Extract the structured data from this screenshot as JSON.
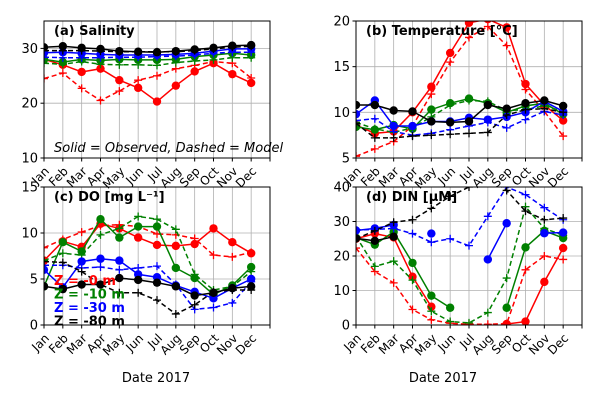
{
  "figure": {
    "xlabel": "Date 2017",
    "months": [
      "Jan",
      "Feb",
      "Mar",
      "Apr",
      "May",
      "Jun",
      "Jul",
      "Aug",
      "Sep",
      "Oct",
      "Nov",
      "Dec"
    ],
    "annotation": "Solid = Observed, Dashed = Model",
    "legend_entries": [
      {
        "label": "Z =    -0 m",
        "color": "#ff0000"
      },
      {
        "label": "Z =   -10 m",
        "color": "#008000"
      },
      {
        "label": "Z =   -30 m",
        "color": "#0000ff"
      },
      {
        "label": "Z =   -80 m",
        "color": "#000000"
      }
    ]
  },
  "chart_data": [
    {
      "type": "line",
      "title": "(a) Salinity",
      "ylim": [
        10,
        35
      ],
      "yticks": [
        10,
        20,
        30
      ],
      "xlim": [
        0,
        12
      ],
      "grid": true,
      "series": [
        {
          "color": "#ff0000",
          "style": "observed",
          "x": [
            0,
            1,
            2,
            3,
            4,
            5,
            6,
            7,
            8,
            9,
            10,
            11
          ],
          "y": [
            28,
            27,
            25.7,
            26.3,
            24.2,
            22.8,
            20.3,
            23.2,
            25.8,
            27.3,
            25.3,
            23.7
          ]
        },
        {
          "color": "#ff0000",
          "style": "model",
          "x": [
            0,
            1,
            2,
            3,
            4,
            5,
            6,
            7,
            8,
            9,
            10,
            11
          ],
          "y": [
            24.5,
            25.5,
            22.7,
            20.5,
            22.2,
            24.2,
            25,
            26.3,
            26.9,
            27.6,
            27.3,
            24.6
          ]
        },
        {
          "color": "#008000",
          "style": "observed",
          "x": [
            0,
            1,
            2,
            3,
            4,
            5,
            6,
            7,
            8,
            9,
            10,
            11
          ],
          "y": [
            28,
            27.5,
            28,
            27.8,
            28,
            27.9,
            27.9,
            28,
            28.5,
            28.8,
            29.1,
            28.8
          ]
        },
        {
          "color": "#008000",
          "style": "model",
          "x": [
            0,
            1,
            2,
            3,
            4,
            5,
            6,
            7,
            8,
            9,
            10,
            11
          ],
          "y": [
            27.3,
            27.1,
            27.6,
            27.1,
            27,
            27,
            26.9,
            27.4,
            27.7,
            27.9,
            28.3,
            28.3
          ]
        },
        {
          "color": "#0000ff",
          "style": "observed",
          "x": [
            0,
            1,
            2,
            3,
            4,
            5,
            6,
            7,
            8,
            9,
            10,
            11
          ],
          "y": [
            29.2,
            29.3,
            29.1,
            28.9,
            28.8,
            28.8,
            28.8,
            28.9,
            29.1,
            29.5,
            29.9,
            29.9
          ]
        },
        {
          "color": "#0000ff",
          "style": "model",
          "x": [
            0,
            1,
            2,
            3,
            4,
            5,
            6,
            7,
            8,
            9,
            10,
            11
          ],
          "y": [
            28.4,
            28.3,
            28.3,
            28.3,
            28.4,
            28.4,
            28.5,
            28.6,
            28.8,
            29.1,
            29.3,
            29.3
          ]
        },
        {
          "color": "#000000",
          "style": "observed",
          "x": [
            0,
            1,
            2,
            3,
            4,
            5,
            6,
            7,
            8,
            9,
            10,
            11
          ],
          "y": [
            30.2,
            30.4,
            30.1,
            29.9,
            29.5,
            29.4,
            29.3,
            29.5,
            29.8,
            30.1,
            30.5,
            30.6
          ]
        },
        {
          "color": "#000000",
          "style": "model",
          "x": [
            0,
            1,
            2,
            3,
            4,
            5,
            6,
            7,
            8,
            9,
            10,
            11
          ],
          "y": [
            29.6,
            29.6,
            29.6,
            29.5,
            29.4,
            29.4,
            29.4,
            29.4,
            29.6,
            29.9,
            30.2,
            30.4
          ]
        }
      ]
    },
    {
      "type": "line",
      "title": "(b) Temperature [°C]",
      "ylim": [
        5,
        20
      ],
      "yticks": [
        5,
        10,
        15,
        20
      ],
      "xlim": [
        0,
        12
      ],
      "grid": true,
      "series": [
        {
          "color": "#ff0000",
          "style": "observed",
          "x": [
            0,
            1,
            2,
            3,
            4,
            5,
            6,
            7,
            8,
            9,
            10,
            11
          ],
          "y": [
            8.6,
            7.7,
            7.9,
            10,
            12.8,
            16.5,
            19.8,
            20.2,
            19.3,
            13.1,
            10.8,
            9.1
          ]
        },
        {
          "color": "#ff0000",
          "style": "model",
          "x": [
            0,
            1,
            2,
            3,
            4,
            5,
            6,
            7,
            8,
            9,
            10,
            11
          ],
          "y": [
            5.2,
            6,
            6.8,
            8.5,
            12,
            15.5,
            18.2,
            19.4,
            17.3,
            12.5,
            10.1,
            7.4
          ]
        },
        {
          "color": "#008000",
          "style": "observed",
          "x": [
            0,
            1,
            2,
            3,
            4,
            5,
            6,
            7,
            8,
            9,
            10,
            11
          ],
          "y": [
            8.4,
            8.1,
            8.6,
            8.2,
            10.3,
            11,
            11.5,
            11,
            10,
            10.7,
            11,
            9.8
          ]
        },
        {
          "color": "#008000",
          "style": "model",
          "x": [
            0,
            1,
            2,
            3,
            4,
            5,
            6,
            7,
            8,
            9,
            10,
            11
          ],
          "y": [
            8.9,
            8.2,
            7.8,
            8.3,
            9.5,
            10.8,
            11.3,
            11.2,
            10.2,
            10.3,
            10.7,
            10.1
          ]
        },
        {
          "color": "#0000ff",
          "style": "observed",
          "x": [
            0,
            1,
            2,
            3,
            4,
            5,
            6,
            7,
            8,
            9,
            10,
            11
          ],
          "y": [
            9.8,
            11.3,
            8.5,
            8.5,
            9,
            9,
            9.4,
            9.2,
            9.5,
            10,
            11.2,
            10.1
          ]
        },
        {
          "color": "#0000ff",
          "style": "model",
          "x": [
            0,
            1,
            2,
            3,
            4,
            5,
            6,
            7,
            8,
            9,
            10,
            11
          ],
          "y": [
            9.1,
            9.3,
            7.9,
            7.5,
            7.7,
            8.1,
            8.5,
            8.9,
            8.3,
            9.2,
            10.1,
            9.7
          ]
        },
        {
          "color": "#000000",
          "style": "observed",
          "x": [
            0,
            1,
            2,
            3,
            4,
            5,
            6,
            7,
            8,
            9,
            10,
            11
          ],
          "y": [
            10.8,
            10.8,
            10.2,
            10.1,
            9,
            8.9,
            9,
            10.8,
            10.4,
            11,
            11.3,
            10.7
          ]
        },
        {
          "color": "#000000",
          "style": "model",
          "x": [
            0,
            1,
            2,
            3,
            4,
            5,
            6,
            7,
            8,
            9,
            10,
            11
          ],
          "y": [
            8.8,
            7.2,
            7.2,
            7.4,
            7.5,
            7.6,
            7.7,
            7.8,
            9.7,
            10.3,
            10.4,
            10
          ]
        }
      ]
    },
    {
      "type": "line",
      "title": "(c) DO [mg L⁻¹]",
      "ylim": [
        0,
        15
      ],
      "yticks": [
        0,
        5,
        10,
        15
      ],
      "xlim": [
        0,
        12
      ],
      "grid": true,
      "series": [
        {
          "color": "#ff0000",
          "style": "observed",
          "x": [
            0,
            1,
            2,
            3,
            4,
            5,
            6,
            7,
            8,
            9,
            10,
            11
          ],
          "y": [
            7,
            9.1,
            8.5,
            11,
            10.5,
            9.5,
            8.7,
            8.6,
            8.8,
            10.5,
            9,
            7.8
          ]
        },
        {
          "color": "#ff0000",
          "style": "model",
          "x": [
            0,
            1,
            2,
            3,
            4,
            5,
            6,
            7,
            8,
            9,
            10,
            11
          ],
          "y": [
            8.4,
            9.3,
            10.1,
            10.8,
            10.9,
            10.7,
            9.9,
            9.8,
            9.4,
            7.6,
            7.4,
            7.9
          ]
        },
        {
          "color": "#008000",
          "style": "observed",
          "x": [
            0,
            1,
            2,
            3,
            4,
            5,
            6,
            7,
            8,
            9,
            10,
            11
          ],
          "y": [
            4.2,
            9,
            8,
            11.5,
            9.5,
            10.7,
            10.7,
            6.2,
            5.1,
            3.3,
            4.3,
            6.3
          ]
        },
        {
          "color": "#008000",
          "style": "model",
          "x": [
            0,
            1,
            2,
            3,
            4,
            5,
            6,
            7,
            8,
            9,
            10,
            11
          ],
          "y": [
            7,
            7.8,
            7.6,
            9.8,
            10.5,
            11.8,
            11.5,
            10.4,
            5.5,
            3.8,
            4.2,
            5.8
          ]
        },
        {
          "color": "#0000ff",
          "style": "observed",
          "x": [
            0,
            1,
            2,
            3,
            4,
            5,
            6,
            7,
            8,
            9,
            10,
            11
          ],
          "y": [
            6,
            4.1,
            6.9,
            7.2,
            7,
            5.5,
            5.2,
            4.3,
            3.6,
            2.9,
            4,
            5
          ]
        },
        {
          "color": "#0000ff",
          "style": "model",
          "x": [
            0,
            1,
            2,
            3,
            4,
            5,
            6,
            7,
            8,
            9,
            10,
            11
          ],
          "y": [
            6.5,
            6.5,
            6.2,
            6.3,
            6,
            6.2,
            6.4,
            4.4,
            1.7,
            1.9,
            2.4,
            4.7
          ]
        },
        {
          "color": "#000000",
          "style": "observed",
          "x": [
            0,
            1,
            2,
            3,
            4,
            5,
            6,
            7,
            8,
            9,
            10,
            11
          ],
          "y": [
            4.2,
            3.9,
            4.4,
            4.4,
            5.1,
            4.9,
            4.6,
            4.2,
            3.2,
            3.5,
            4,
            4.2
          ]
        },
        {
          "color": "#000000",
          "style": "model",
          "x": [
            0,
            1,
            2,
            3,
            4,
            5,
            6,
            7,
            8,
            9,
            10,
            11
          ],
          "y": [
            6.9,
            6.8,
            5.8,
            4.4,
            3.5,
            3.5,
            2.7,
            1.2,
            2.2,
            3.6,
            3.8,
            3.8
          ]
        }
      ]
    },
    {
      "type": "line",
      "title": "(d) DIN  [µM]",
      "ylim": [
        0,
        40
      ],
      "yticks": [
        0,
        10,
        20,
        30,
        40
      ],
      "xlim": [
        0,
        12
      ],
      "grid": true,
      "series": [
        {
          "color": "#ff0000",
          "style": "observed",
          "x": [
            0,
            1,
            2,
            3,
            4,
            5,
            6,
            7,
            8,
            9,
            10,
            11
          ],
          "y": [
            25,
            26.5,
            25.4,
            14,
            5.3,
            null,
            null,
            null,
            0.3,
            1,
            12.5,
            22.3
          ]
        },
        {
          "color": "#ff0000",
          "style": "model",
          "x": [
            0,
            1,
            2,
            3,
            4,
            5,
            6,
            7,
            8,
            9,
            10,
            11
          ],
          "y": [
            22.3,
            15.5,
            12.2,
            4.5,
            1.5,
            0.5,
            0.2,
            0.2,
            0.4,
            16,
            20,
            19
          ]
        },
        {
          "color": "#008000",
          "style": "observed",
          "x": [
            0,
            1,
            2,
            3,
            4,
            5,
            6,
            7,
            8,
            9,
            10,
            11
          ],
          "y": [
            25.3,
            23.3,
            27,
            18,
            8.5,
            5,
            null,
            null,
            5,
            22.5,
            27.3,
            25.2
          ]
        },
        {
          "color": "#008000",
          "style": "model",
          "x": [
            0,
            1,
            2,
            3,
            4,
            5,
            6,
            7,
            8,
            9,
            10,
            11
          ],
          "y": [
            25.7,
            17,
            18.5,
            13,
            4,
            1,
            0.6,
            3.6,
            13.6,
            34.3,
            28,
            26
          ]
        },
        {
          "color": "#0000ff",
          "style": "observed",
          "x": [
            0,
            1,
            2,
            3,
            4,
            5,
            6,
            7,
            8,
            9,
            10,
            11
          ],
          "y": [
            27.4,
            28,
            29,
            null,
            26.5,
            null,
            null,
            19,
            29.5,
            null,
            26.6,
            26.8
          ]
        },
        {
          "color": "#0000ff",
          "style": "model",
          "x": [
            0,
            1,
            2,
            3,
            4,
            5,
            6,
            7,
            8,
            9,
            10,
            11
          ],
          "y": [
            27.5,
            27.7,
            28,
            26.5,
            24,
            25,
            23,
            31.5,
            40,
            37.8,
            34,
            30.5
          ]
        },
        {
          "color": "#000000",
          "style": "observed",
          "x": [
            0,
            1,
            2,
            3,
            4,
            5,
            6,
            7,
            8,
            9,
            10,
            11
          ],
          "y": [
            25.1,
            24.4,
            25.6,
            null,
            null,
            null,
            null,
            null,
            null,
            null,
            null,
            null
          ]
        },
        {
          "color": "#000000",
          "style": "model",
          "x": [
            0,
            1,
            2,
            3,
            4,
            5,
            6,
            7,
            8,
            9,
            10,
            11
          ],
          "y": [
            25,
            27.3,
            29.8,
            30.5,
            33.8,
            37.3,
            40,
            43,
            39,
            33,
            30.5,
            31
          ]
        }
      ]
    }
  ]
}
